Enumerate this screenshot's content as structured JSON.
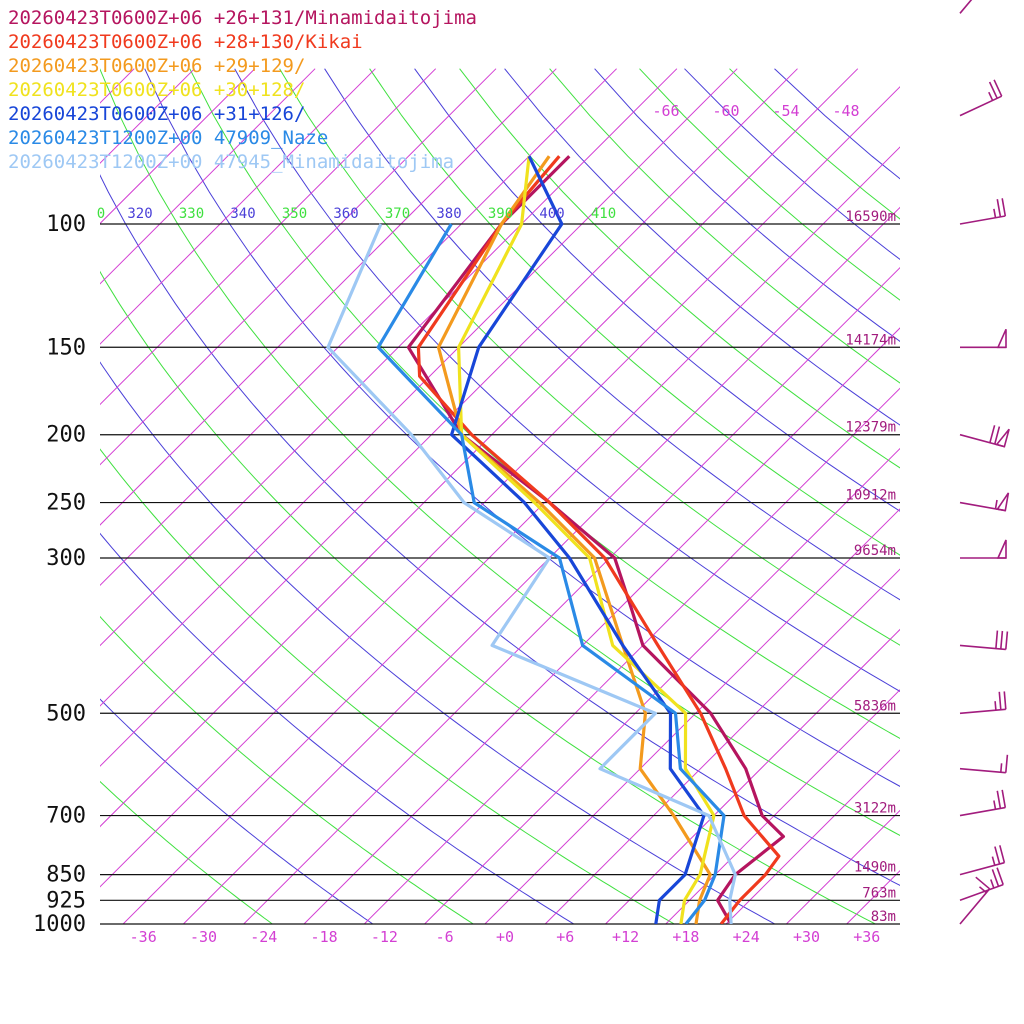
{
  "chart_data": {
    "type": "line",
    "subtype": "skew-T log-P",
    "legend": [
      {
        "text": "20260423T0600Z+06 +26+131/Minamidaitojima",
        "color": "#b5155f"
      },
      {
        "text": "20260423T0600Z+06 +28+130/Kikai",
        "color": "#f03a1e"
      },
      {
        "text": "20260423T0600Z+06 +29+129/",
        "color": "#f39a1e"
      },
      {
        "text": "20260423T0600Z+06 +30+128/",
        "color": "#f0e21e"
      },
      {
        "text": "20260423T0600Z+06 +31+126/",
        "color": "#1846d8"
      },
      {
        "text": "20260423T1200Z+00 47909_Naze",
        "color": "#2a8ae6"
      },
      {
        "text": "20260423T1200Z+00 47945_Minamidaitojima",
        "color": "#9ec8f4"
      }
    ],
    "pressure_levels": [
      "100",
      "150",
      "200",
      "250",
      "300",
      "500",
      "700",
      "850",
      "925",
      "1000"
    ],
    "height_labels": [
      {
        "p": 100,
        "label": "16590m"
      },
      {
        "p": 150,
        "label": "14174m"
      },
      {
        "p": 200,
        "label": "12379m"
      },
      {
        "p": 250,
        "label": "10912m"
      },
      {
        "p": 300,
        "label": "9654m"
      },
      {
        "p": 500,
        "label": "5836m"
      },
      {
        "p": 700,
        "label": "3122m"
      },
      {
        "p": 850,
        "label": "1490m"
      },
      {
        "p": 925,
        "label": "763m"
      },
      {
        "p": 1000,
        "label": "83m"
      }
    ],
    "temperature_ticks": [
      "-36",
      "-30",
      "-24",
      "-18",
      "-12",
      "-6",
      "+0",
      "+6",
      "+12",
      "+18",
      "+24",
      "+30",
      "+36"
    ],
    "upper_temperature_ticks": [
      "-66",
      "-60",
      "-54",
      "-48"
    ],
    "theta_labels": [
      {
        "text": "0",
        "color": "#3fe03f"
      },
      {
        "text": "320",
        "color": "#4a3fd8"
      },
      {
        "text": "330",
        "color": "#3fe03f"
      },
      {
        "text": "340",
        "color": "#4a3fd8"
      },
      {
        "text": "350",
        "color": "#3fe03f"
      },
      {
        "text": "360",
        "color": "#4a3fd8"
      },
      {
        "text": "370",
        "color": "#3fe03f"
      },
      {
        "text": "380",
        "color": "#4a3fd8"
      },
      {
        "text": "390",
        "color": "#3fe03f"
      },
      {
        "text": "400",
        "color": "#4a3fd8"
      },
      {
        "text": "410",
        "color": "#3fe03f"
      }
    ],
    "xlim": [
      -40,
      40
    ],
    "ylim": [
      1000,
      100
    ],
    "series": [
      {
        "name": "20260423T0600Z+06 +26+131/Minamidaitojima",
        "color": "#b5155f",
        "points": [
          [
            1000,
            22.5
          ],
          [
            925,
            18.8
          ],
          [
            850,
            18
          ],
          [
            750,
            19
          ],
          [
            700,
            14.8
          ],
          [
            600,
            8.5
          ],
          [
            500,
            -0.5
          ],
          [
            400,
            -14
          ],
          [
            350,
            -19.3
          ],
          [
            300,
            -25.5
          ],
          [
            250,
            -37.5
          ],
          [
            200,
            -53
          ],
          [
            150,
            -67
          ],
          [
            100,
            -70
          ],
          [
            80,
            -70
          ]
        ]
      },
      {
        "name": "20260423T0600Z+06 +28+130/Kikai",
        "color": "#f03a1e",
        "points": [
          [
            1000,
            21.5
          ],
          [
            925,
            21
          ],
          [
            850,
            21
          ],
          [
            800,
            20.5
          ],
          [
            700,
            13
          ],
          [
            600,
            6.5
          ],
          [
            500,
            -1.5
          ],
          [
            400,
            -12.5
          ],
          [
            300,
            -26.5
          ],
          [
            250,
            -37.5
          ],
          [
            200,
            -52
          ],
          [
            165,
            -63
          ],
          [
            150,
            -66
          ],
          [
            100,
            -70
          ],
          [
            80,
            -71
          ]
        ]
      },
      {
        "name": "20260423T0600Z+06 +29+129/",
        "color": "#f39a1e",
        "points": [
          [
            1000,
            19
          ],
          [
            925,
            17
          ],
          [
            850,
            15.5
          ],
          [
            700,
            6
          ],
          [
            600,
            -2
          ],
          [
            500,
            -7
          ],
          [
            400,
            -16
          ],
          [
            300,
            -27.5
          ],
          [
            250,
            -38.5
          ],
          [
            200,
            -53
          ],
          [
            150,
            -64
          ],
          [
            100,
            -70
          ],
          [
            80,
            -72
          ]
        ]
      },
      {
        "name": "20260423T0600Z+06 +30+128/",
        "color": "#f0e21e",
        "points": [
          [
            1000,
            17.5
          ],
          [
            925,
            15.5
          ],
          [
            850,
            14.5
          ],
          [
            700,
            10
          ],
          [
            600,
            2.5
          ],
          [
            500,
            -3
          ],
          [
            400,
            -17
          ],
          [
            300,
            -28
          ],
          [
            250,
            -39
          ],
          [
            200,
            -53
          ],
          [
            150,
            -62
          ],
          [
            100,
            -68
          ],
          [
            80,
            -74
          ]
        ]
      },
      {
        "name": "20260423T0600Z+06 +31+126/",
        "color": "#1846d8",
        "points": [
          [
            1000,
            15
          ],
          [
            925,
            13
          ],
          [
            850,
            13
          ],
          [
            700,
            9
          ],
          [
            600,
            1
          ],
          [
            500,
            -4.5
          ],
          [
            400,
            -16
          ],
          [
            300,
            -30
          ],
          [
            250,
            -40
          ],
          [
            200,
            -54
          ],
          [
            150,
            -60
          ],
          [
            100,
            -64
          ],
          [
            80,
            -74
          ]
        ]
      },
      {
        "name": "20260423T1200Z+00 47909_Naze",
        "color": "#2a8ae6",
        "points": [
          [
            1000,
            18
          ],
          [
            925,
            17.5
          ],
          [
            850,
            16
          ],
          [
            700,
            11
          ],
          [
            600,
            2
          ],
          [
            500,
            -4
          ],
          [
            400,
            -20
          ],
          [
            300,
            -31
          ],
          [
            250,
            -45
          ],
          [
            200,
            -53
          ],
          [
            150,
            -70
          ],
          [
            100,
            -75
          ]
        ]
      },
      {
        "name": "20260423T1200Z+00 47945_Minamidaitojima",
        "color": "#9ec8f4",
        "points": [
          [
            1000,
            22.5
          ],
          [
            925,
            20
          ],
          [
            850,
            18
          ],
          [
            700,
            9.5
          ],
          [
            600,
            -6
          ],
          [
            500,
            -6
          ],
          [
            400,
            -29
          ],
          [
            300,
            -32
          ],
          [
            250,
            -46
          ],
          [
            200,
            -58
          ],
          [
            150,
            -75
          ],
          [
            100,
            -82
          ]
        ]
      }
    ],
    "wind_barbs": [
      {
        "p": 1000,
        "speed_kt": 15,
        "dir_deg": 220
      },
      {
        "p": 925,
        "speed_kt": 25,
        "dir_deg": 250
      },
      {
        "p": 850,
        "speed_kt": 25,
        "dir_deg": 255
      },
      {
        "p": 700,
        "speed_kt": 25,
        "dir_deg": 260
      },
      {
        "p": 600,
        "speed_kt": 15,
        "dir_deg": 275
      },
      {
        "p": 500,
        "speed_kt": 25,
        "dir_deg": 265
      },
      {
        "p": 400,
        "speed_kt": 30,
        "dir_deg": 275
      },
      {
        "p": 300,
        "speed_kt": 50,
        "dir_deg": 270
      },
      {
        "p": 250,
        "speed_kt": 55,
        "dir_deg": 280
      },
      {
        "p": 200,
        "speed_kt": 70,
        "dir_deg": 285
      },
      {
        "p": 150,
        "speed_kt": 50,
        "dir_deg": 270
      },
      {
        "p": 100,
        "speed_kt": 25,
        "dir_deg": 260
      },
      {
        "p": 70,
        "speed_kt": 25,
        "dir_deg": 245
      },
      {
        "p": 50,
        "speed_kt": 10,
        "dir_deg": 220
      }
    ]
  }
}
